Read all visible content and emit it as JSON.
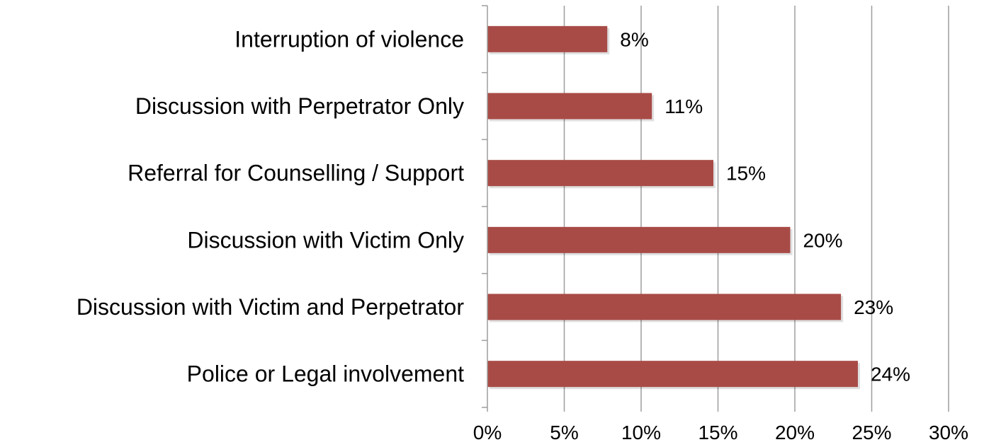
{
  "chart_data": {
    "type": "bar",
    "orientation": "horizontal",
    "categories": [
      "Interruption of violence",
      "Discussion with Perpetrator Only",
      "Referral for Counselling / Support",
      "Discussion with Victim Only",
      "Discussion with Victim and Perpetrator",
      "Police or Legal involvement"
    ],
    "values": [
      7.8,
      10.7,
      14.7,
      19.7,
      23.0,
      24.1
    ],
    "data_labels": [
      "8%",
      "11%",
      "15%",
      "20%",
      "23%",
      "24%"
    ],
    "x_ticks": [
      "0%",
      "5%",
      "10%",
      "15%",
      "20%",
      "25%",
      "30%"
    ],
    "xlim": [
      0,
      30
    ],
    "x_tick_values": [
      0,
      5,
      10,
      15,
      20,
      25,
      30
    ],
    "grid": true,
    "legend": "none",
    "bar_color": "#a84b47",
    "grid_color": "#9e9e9e"
  }
}
